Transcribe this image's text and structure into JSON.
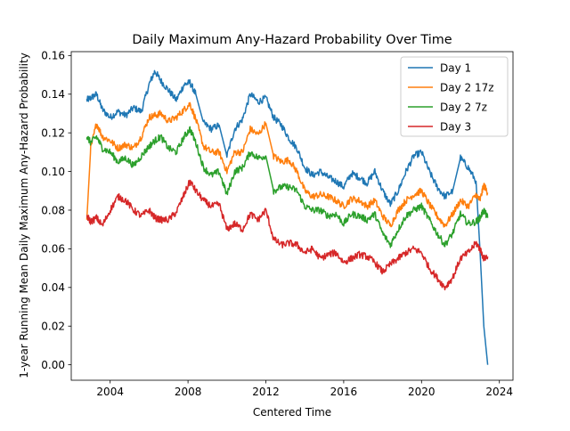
{
  "chart_data": {
    "type": "line",
    "title": "Daily Maximum Any-Hazard Probability Over Time",
    "xlabel": "Centered Time",
    "ylabel": "1-year Running Mean Daily Maximum Any-Hazard Probability",
    "xlim": [
      2002.0,
      2024.7
    ],
    "ylim": [
      -0.008,
      0.162
    ],
    "x_ticks": [
      2004,
      2008,
      2012,
      2016,
      2020,
      2024
    ],
    "x_tick_labels": [
      "2004",
      "2008",
      "2012",
      "2016",
      "2020",
      "2024"
    ],
    "y_ticks": [
      0.0,
      0.02,
      0.04,
      0.06,
      0.08,
      0.1,
      0.12,
      0.14,
      0.16
    ],
    "y_tick_labels": [
      "0.00",
      "0.02",
      "0.04",
      "0.06",
      "0.08",
      "0.10",
      "0.12",
      "0.14",
      "0.16"
    ],
    "legend_position": "top-right",
    "grid": false,
    "series": [
      {
        "name": "Day 1",
        "color": "#1f77b4",
        "x": [
          2002.8,
          2003.0,
          2003.3,
          2003.6,
          2004.0,
          2004.4,
          2004.8,
          2005.2,
          2005.6,
          2006.0,
          2006.3,
          2006.6,
          2007.0,
          2007.4,
          2007.8,
          2008.1,
          2008.4,
          2008.8,
          2009.2,
          2009.6,
          2010.0,
          2010.4,
          2010.8,
          2011.2,
          2011.6,
          2012.0,
          2012.4,
          2012.8,
          2013.2,
          2013.6,
          2014.0,
          2014.4,
          2014.8,
          2015.2,
          2015.6,
          2016.0,
          2016.4,
          2016.8,
          2017.2,
          2017.6,
          2018.0,
          2018.4,
          2018.8,
          2019.2,
          2019.6,
          2020.0,
          2020.4,
          2020.8,
          2021.2,
          2021.6,
          2022.0,
          2022.4,
          2022.8,
          2023.0,
          2023.2,
          2023.4
        ],
        "y": [
          0.137,
          0.138,
          0.14,
          0.132,
          0.128,
          0.131,
          0.129,
          0.133,
          0.131,
          0.145,
          0.152,
          0.147,
          0.142,
          0.137,
          0.145,
          0.146,
          0.14,
          0.125,
          0.122,
          0.124,
          0.108,
          0.122,
          0.127,
          0.14,
          0.136,
          0.138,
          0.128,
          0.124,
          0.117,
          0.112,
          0.102,
          0.098,
          0.1,
          0.097,
          0.095,
          0.092,
          0.099,
          0.097,
          0.094,
          0.1,
          0.09,
          0.083,
          0.09,
          0.1,
          0.108,
          0.11,
          0.1,
          0.092,
          0.087,
          0.09,
          0.107,
          0.102,
          0.095,
          0.06,
          0.02,
          0.0
        ]
      },
      {
        "name": "Day 2 17z",
        "color": "#ff7f0e",
        "x": [
          2002.8,
          2003.0,
          2003.3,
          2003.6,
          2004.0,
          2004.4,
          2004.8,
          2005.2,
          2005.6,
          2006.0,
          2006.3,
          2006.6,
          2007.0,
          2007.4,
          2007.8,
          2008.1,
          2008.4,
          2008.8,
          2009.2,
          2009.6,
          2010.0,
          2010.4,
          2010.8,
          2011.2,
          2011.6,
          2012.0,
          2012.4,
          2012.8,
          2013.2,
          2013.6,
          2014.0,
          2014.4,
          2014.8,
          2015.2,
          2015.6,
          2016.0,
          2016.4,
          2016.8,
          2017.2,
          2017.6,
          2018.0,
          2018.4,
          2018.8,
          2019.2,
          2019.6,
          2020.0,
          2020.4,
          2020.8,
          2021.2,
          2021.6,
          2022.0,
          2022.4,
          2022.8,
          2023.0,
          2023.2,
          2023.4
        ],
        "y": [
          0.075,
          0.112,
          0.125,
          0.118,
          0.116,
          0.112,
          0.114,
          0.112,
          0.118,
          0.128,
          0.129,
          0.13,
          0.126,
          0.128,
          0.132,
          0.135,
          0.127,
          0.113,
          0.11,
          0.11,
          0.1,
          0.11,
          0.11,
          0.122,
          0.119,
          0.125,
          0.108,
          0.105,
          0.106,
          0.1,
          0.09,
          0.087,
          0.088,
          0.087,
          0.085,
          0.082,
          0.086,
          0.085,
          0.082,
          0.085,
          0.077,
          0.072,
          0.08,
          0.085,
          0.088,
          0.09,
          0.083,
          0.077,
          0.072,
          0.078,
          0.085,
          0.082,
          0.088,
          0.085,
          0.093,
          0.089
        ]
      },
      {
        "name": "Day 2 7z",
        "color": "#2ca02c",
        "x": [
          2002.8,
          2003.0,
          2003.3,
          2003.6,
          2004.0,
          2004.4,
          2004.8,
          2005.2,
          2005.6,
          2006.0,
          2006.3,
          2006.6,
          2007.0,
          2007.4,
          2007.8,
          2008.1,
          2008.4,
          2008.8,
          2009.2,
          2009.6,
          2010.0,
          2010.4,
          2010.8,
          2011.2,
          2011.6,
          2012.0,
          2012.4,
          2012.8,
          2013.2,
          2013.6,
          2014.0,
          2014.4,
          2014.8,
          2015.2,
          2015.6,
          2016.0,
          2016.4,
          2016.8,
          2017.2,
          2017.6,
          2018.0,
          2018.4,
          2018.8,
          2019.2,
          2019.6,
          2020.0,
          2020.4,
          2020.8,
          2021.2,
          2021.6,
          2022.0,
          2022.4,
          2022.8,
          2023.0,
          2023.2,
          2023.4
        ],
        "y": [
          0.118,
          0.115,
          0.118,
          0.112,
          0.11,
          0.105,
          0.107,
          0.103,
          0.108,
          0.113,
          0.116,
          0.118,
          0.112,
          0.11,
          0.118,
          0.122,
          0.115,
          0.102,
          0.098,
          0.1,
          0.088,
          0.1,
          0.102,
          0.11,
          0.107,
          0.108,
          0.09,
          0.092,
          0.092,
          0.09,
          0.082,
          0.08,
          0.08,
          0.077,
          0.078,
          0.073,
          0.078,
          0.077,
          0.075,
          0.078,
          0.068,
          0.062,
          0.07,
          0.077,
          0.08,
          0.082,
          0.075,
          0.068,
          0.062,
          0.068,
          0.078,
          0.073,
          0.074,
          0.076,
          0.08,
          0.076
        ]
      },
      {
        "name": "Day 3",
        "color": "#d62728",
        "x": [
          2002.8,
          2003.0,
          2003.3,
          2003.6,
          2004.0,
          2004.4,
          2004.8,
          2005.2,
          2005.6,
          2006.0,
          2006.3,
          2006.6,
          2007.0,
          2007.4,
          2007.8,
          2008.1,
          2008.4,
          2008.8,
          2009.2,
          2009.6,
          2010.0,
          2010.4,
          2010.8,
          2011.2,
          2011.6,
          2012.0,
          2012.4,
          2012.8,
          2013.2,
          2013.6,
          2014.0,
          2014.4,
          2014.8,
          2015.2,
          2015.6,
          2016.0,
          2016.4,
          2016.8,
          2017.2,
          2017.6,
          2018.0,
          2018.4,
          2018.8,
          2019.2,
          2019.6,
          2020.0,
          2020.4,
          2020.8,
          2021.2,
          2021.6,
          2022.0,
          2022.4,
          2022.8,
          2023.0,
          2023.2,
          2023.4
        ],
        "y": [
          0.077,
          0.074,
          0.076,
          0.072,
          0.08,
          0.087,
          0.085,
          0.08,
          0.077,
          0.08,
          0.076,
          0.075,
          0.075,
          0.079,
          0.088,
          0.095,
          0.09,
          0.085,
          0.082,
          0.083,
          0.07,
          0.073,
          0.07,
          0.078,
          0.075,
          0.08,
          0.065,
          0.062,
          0.063,
          0.062,
          0.058,
          0.06,
          0.055,
          0.057,
          0.058,
          0.053,
          0.055,
          0.057,
          0.056,
          0.053,
          0.048,
          0.052,
          0.055,
          0.058,
          0.06,
          0.058,
          0.05,
          0.045,
          0.04,
          0.045,
          0.055,
          0.058,
          0.063,
          0.06,
          0.055,
          0.056
        ]
      }
    ]
  }
}
